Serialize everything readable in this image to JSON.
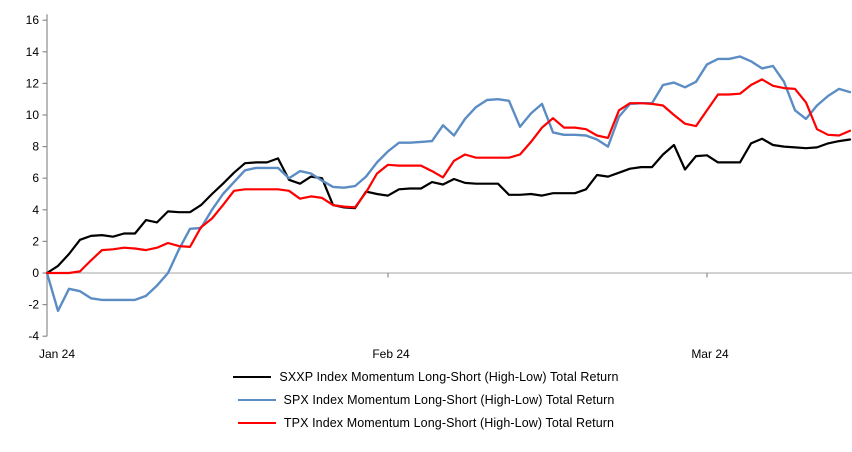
{
  "chart_data": {
    "type": "line",
    "title": "",
    "xlabel": "",
    "ylabel": "",
    "grid": "zero-line-only",
    "legend_position": "bottom",
    "axis_color": "#8c8c8c",
    "zero_line_color": "#a6a6a6",
    "x_axis": {
      "tick_labels": [
        "Jan 24",
        "Feb 24",
        "Mar 24"
      ],
      "tick_indices": [
        0,
        31,
        60
      ],
      "num_points": 74
    },
    "y_axis": {
      "min": -4,
      "max": 16,
      "step": 2,
      "tick_labels": [
        "16",
        "14",
        "12",
        "10",
        "8",
        "6",
        "4",
        "2",
        "0",
        "-2",
        "-4"
      ]
    },
    "series": [
      {
        "name": "SXXP Index Momentum Long-Short (High-Low) Total Return",
        "id": "sxxp",
        "color": "#000000",
        "values": [
          0,
          0.45,
          1.2,
          2.1,
          2.35,
          2.4,
          2.3,
          2.5,
          2.5,
          3.35,
          3.2,
          3.9,
          3.85,
          3.85,
          4.3,
          5.0,
          5.65,
          6.35,
          6.95,
          7.0,
          7.0,
          7.25,
          5.9,
          5.65,
          6.1,
          6.0,
          4.3,
          4.15,
          4.1,
          5.15,
          5.0,
          4.9,
          5.3,
          5.35,
          5.35,
          5.75,
          5.6,
          5.95,
          5.7,
          5.65,
          5.65,
          5.65,
          4.95,
          4.95,
          5.0,
          4.9,
          5.05,
          5.05,
          5.05,
          5.3,
          6.2,
          6.1,
          6.35,
          6.6,
          6.7,
          6.7,
          7.5,
          8.1,
          6.55,
          7.4,
          7.45,
          7.0,
          7.0,
          7.0,
          8.2,
          8.5,
          8.1,
          8.0,
          7.95,
          7.9,
          7.95,
          8.2,
          8.35,
          8.45
        ]
      },
      {
        "name": "SPX Index Momentum Long-Short (High-Low) Total Return",
        "id": "spx",
        "color": "#5b8dc4",
        "values": [
          0,
          -2.4,
          -1.0,
          -1.15,
          -1.6,
          -1.7,
          -1.7,
          -1.7,
          -1.7,
          -1.45,
          -0.8,
          0.0,
          1.5,
          2.8,
          2.85,
          4.0,
          5.0,
          5.75,
          6.5,
          6.65,
          6.65,
          6.65,
          6.0,
          6.45,
          6.3,
          5.85,
          5.45,
          5.4,
          5.5,
          6.1,
          7.0,
          7.7,
          8.25,
          8.25,
          8.3,
          8.35,
          9.35,
          8.7,
          9.75,
          10.5,
          10.95,
          11.0,
          10.9,
          9.25,
          10.1,
          10.7,
          8.9,
          8.75,
          8.75,
          8.7,
          8.45,
          8.0,
          9.9,
          10.7,
          10.75,
          10.75,
          11.9,
          12.05,
          11.75,
          12.1,
          13.2,
          13.55,
          13.55,
          13.7,
          13.4,
          12.95,
          13.1,
          12.1,
          10.3,
          9.75,
          10.6,
          11.2,
          11.65,
          11.45
        ]
      },
      {
        "name": "TPX Index Momentum Long-Short (High-Low) Total Return",
        "id": "tpx",
        "color": "#ff0000",
        "values": [
          0,
          0,
          0,
          0.1,
          0.8,
          1.45,
          1.5,
          1.6,
          1.55,
          1.45,
          1.6,
          1.9,
          1.7,
          1.65,
          2.9,
          3.45,
          4.3,
          5.2,
          5.3,
          5.3,
          5.3,
          5.3,
          5.2,
          4.7,
          4.85,
          4.75,
          4.3,
          4.2,
          4.15,
          5.1,
          6.3,
          6.85,
          6.8,
          6.8,
          6.8,
          6.45,
          6.05,
          7.1,
          7.5,
          7.3,
          7.3,
          7.3,
          7.3,
          7.5,
          8.3,
          9.2,
          9.8,
          9.2,
          9.2,
          9.1,
          8.7,
          8.55,
          10.3,
          10.75,
          10.75,
          10.7,
          10.6,
          10.0,
          9.45,
          9.3,
          10.3,
          11.3,
          11.3,
          11.35,
          11.9,
          12.25,
          11.85,
          11.7,
          11.65,
          10.8,
          9.1,
          8.75,
          8.7,
          9.0
        ]
      }
    ]
  }
}
